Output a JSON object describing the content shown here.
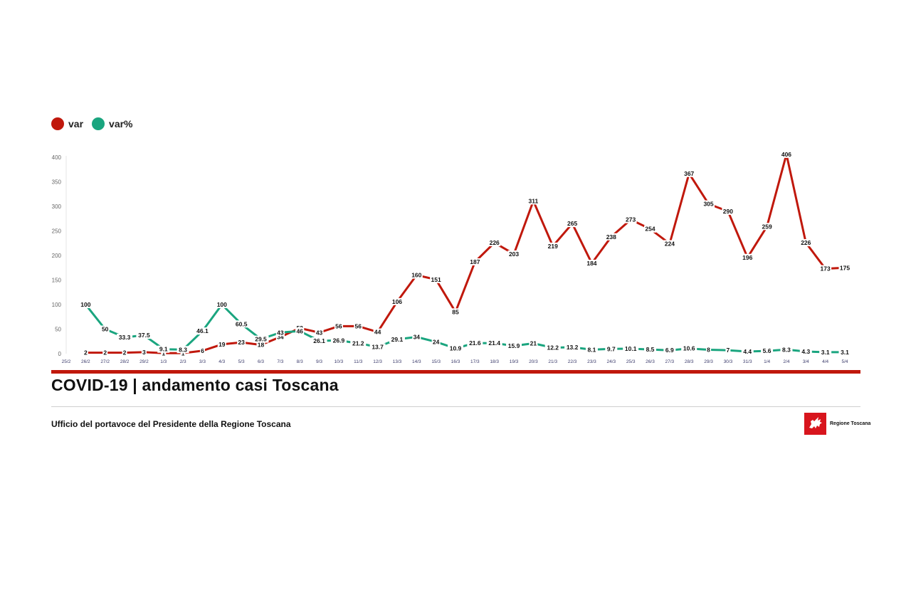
{
  "legend": [
    {
      "label": "var",
      "color": "#c0180c"
    },
    {
      "label": "var%",
      "color": "#1aa57f"
    }
  ],
  "title": "COVID-19 | andamento casi Toscana",
  "footer": "Ufficio del portavoce del Presidente della Regione Toscana",
  "logo": {
    "text": "Regione Toscana",
    "icon": "pegasus-icon",
    "color": "#d8151d"
  },
  "accent_color": "#c0180c",
  "chart_data": {
    "type": "line",
    "categories": [
      "25/2",
      "26/2",
      "27/2",
      "28/2",
      "29/2",
      "1/3",
      "2/3",
      "3/3",
      "4/3",
      "5/3",
      "6/3",
      "7/3",
      "8/3",
      "9/3",
      "10/3",
      "11/3",
      "12/3",
      "13/3",
      "14/3",
      "15/3",
      "16/3",
      "17/3",
      "18/3",
      "19/3",
      "20/3",
      "21/3",
      "22/3",
      "23/3",
      "24/3",
      "25/3",
      "26/3",
      "27/3",
      "28/3",
      "29/3",
      "30/3",
      "31/3",
      "1/4",
      "2/4",
      "3/4",
      "4/4",
      "5/4"
    ],
    "series": [
      {
        "name": "var",
        "color": "#c0180c",
        "values": [
          null,
          2,
          2,
          2,
          3,
          1,
          1,
          6,
          19,
          23,
          18,
          34,
          52,
          43,
          56,
          56,
          44,
          106,
          160,
          151,
          85,
          187,
          226,
          203,
          311,
          219,
          265,
          184,
          238,
          273,
          254,
          224,
          367,
          305,
          290,
          196,
          259,
          406,
          226,
          173,
          175
        ],
        "labels": [
          null,
          "2",
          "2",
          "2",
          "3",
          "1",
          "1",
          "6",
          "19",
          "23",
          "18",
          "34",
          "52",
          "43",
          "56",
          "56",
          "44",
          "106",
          "160",
          "151",
          "85",
          "187",
          "226",
          "203",
          "311",
          "219",
          "265",
          "184",
          "238",
          "273",
          "254",
          "224",
          "367",
          "305",
          "290",
          "196",
          "259",
          "406",
          "226",
          "173",
          "175"
        ]
      },
      {
        "name": "var%",
        "color": "#1aa57f",
        "values": [
          null,
          100,
          50,
          33.3,
          37.5,
          9.1,
          8.3,
          46.1,
          100,
          60.5,
          29.5,
          43,
          46,
          26.1,
          26.9,
          21.2,
          13.7,
          29.1,
          34,
          24,
          10.9,
          21.6,
          21.4,
          15.9,
          21,
          12.2,
          13.2,
          8.1,
          9.7,
          10.1,
          8.5,
          6.9,
          10.6,
          8,
          7,
          4.4,
          5.6,
          8.3,
          4.3,
          3.1,
          3.1
        ],
        "labels": [
          null,
          "100",
          "50",
          "33.3",
          "37.5",
          "9.1",
          "8.3",
          "46.1",
          "100",
          "60.5",
          "29.5",
          "43",
          "46",
          "26.1",
          "26.9",
          "21.2",
          "13.7",
          "29.1",
          "34",
          "24",
          "10.9",
          "21.6",
          "21.4",
          "15.9",
          "21",
          "12.2",
          "13.2",
          "8.1",
          "9.7",
          "10.1",
          "8.5",
          "6.9",
          "10.6",
          "8",
          "7",
          "4.4",
          "5.6",
          "8.3",
          "4.3",
          "3.1",
          "3.1"
        ]
      }
    ],
    "yticks": [
      0,
      50,
      100,
      150,
      200,
      250,
      300,
      350,
      400
    ],
    "ylim": [
      0,
      400
    ],
    "grid": false,
    "legend_position": "top-left"
  }
}
